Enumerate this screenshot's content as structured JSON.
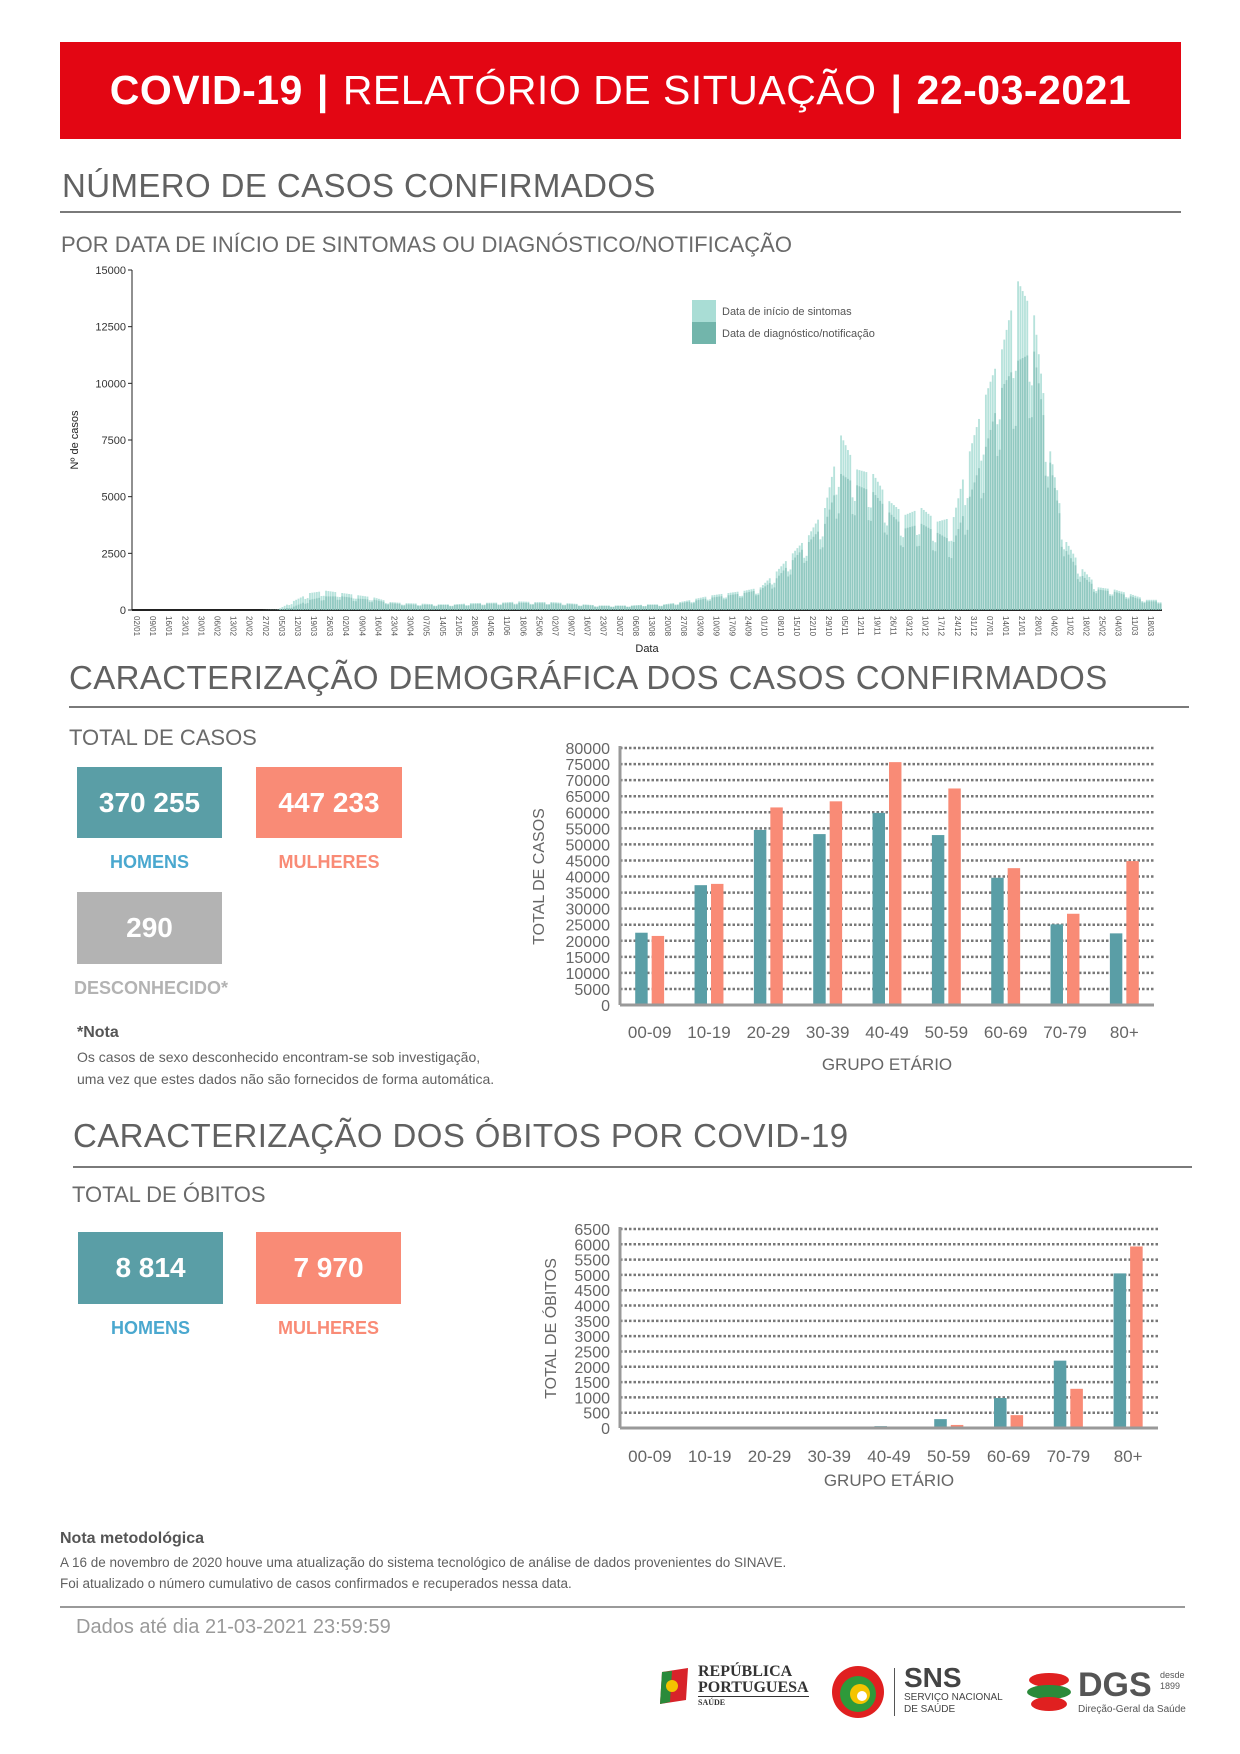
{
  "header": {
    "title_bold": "COVID-19",
    "separator": "|",
    "title": "RELATÓRIO DE SITUAÇÃO",
    "date": "22-03-2021"
  },
  "section_cases": {
    "title": "NÚMERO DE CASOS CONFIRMADOS",
    "subtitle": "POR DATA DE INÍCIO DE SINTOMAS OU DIAGNÓSTICO/NOTIFICAÇÃO"
  },
  "section_demo": {
    "title": "CARACTERIZAÇÃO DEMOGRÁFICA DOS CASOS CONFIRMADOS",
    "total_label": "TOTAL DE CASOS",
    "men_value": "370 255",
    "men_label": "HOMENS",
    "women_value": "447 233",
    "women_label": "MULHERES",
    "unknown_value": "290",
    "unknown_label": "DESCONHECIDO*",
    "note_title": "*Nota",
    "note_line1": "Os casos de sexo desconhecido encontram-se sob investigação,",
    "note_line2": "uma vez que estes dados não são fornecidos de forma automática."
  },
  "section_deaths": {
    "title": "CARACTERIZAÇÃO DOS ÓBITOS POR COVID-19",
    "total_label": "TOTAL DE ÓBITOS",
    "men_value": "8 814",
    "men_label": "HOMENS",
    "women_value": "7 970",
    "women_label": "MULHERES"
  },
  "colors": {
    "header": "#e30613",
    "men": "#5a9ea6",
    "women": "#f98b76",
    "unknown": "#b3b3b3",
    "men_label": "#4aa8cf",
    "symptoms": "#a9ddd5",
    "notification": "#72b5ab"
  },
  "chart_data": [
    {
      "type": "bar",
      "xlabel": "Data",
      "ylabel": "Nº de casos",
      "ylim": [
        0,
        15000
      ],
      "yticks": [
        0,
        2500,
        5000,
        7500,
        10000,
        12500,
        15000
      ],
      "legend_position": "top-right",
      "grid": false,
      "categories": [
        "02/01",
        "09/01",
        "16/01",
        "23/01",
        "30/01",
        "06/02",
        "13/02",
        "20/02",
        "27/02",
        "05/03",
        "12/03",
        "19/03",
        "26/03",
        "02/04",
        "09/04",
        "16/04",
        "23/04",
        "30/04",
        "07/05",
        "14/05",
        "21/05",
        "28/05",
        "04/06",
        "11/06",
        "18/06",
        "25/06",
        "02/07",
        "09/07",
        "16/07",
        "23/07",
        "30/07",
        "06/08",
        "13/08",
        "20/08",
        "27/08",
        "03/09",
        "10/09",
        "17/09",
        "24/09",
        "01/10",
        "08/10",
        "15/10",
        "22/10",
        "29/10",
        "05/11",
        "12/11",
        "19/11",
        "26/11",
        "03/12",
        "10/12",
        "17/12",
        "24/12",
        "31/12",
        "07/01",
        "14/01",
        "21/01",
        "28/01",
        "04/02",
        "11/02",
        "18/02",
        "25/02",
        "04/03",
        "11/03",
        "18/03"
      ],
      "series": [
        {
          "name": "Data de início de sintomas",
          "values": [
            0,
            0,
            0,
            0,
            0,
            0,
            0,
            0,
            0,
            20,
            400,
            750,
            850,
            750,
            650,
            550,
            350,
            300,
            280,
            250,
            250,
            300,
            320,
            330,
            380,
            350,
            350,
            300,
            250,
            200,
            200,
            200,
            250,
            250,
            350,
            500,
            650,
            750,
            850,
            1000,
            1700,
            2500,
            3300,
            4500,
            7700,
            6200,
            6000,
            4800,
            4200,
            4500,
            3900,
            4100,
            7000,
            9500,
            11500,
            14500,
            13000,
            7000,
            3000,
            1800,
            1000,
            900,
            700,
            450
          ]
        },
        {
          "name": "Data de diagnóstico/notificação",
          "values": [
            0,
            0,
            0,
            0,
            0,
            0,
            0,
            0,
            0,
            0,
            150,
            450,
            600,
            600,
            500,
            450,
            300,
            250,
            230,
            220,
            220,
            250,
            280,
            290,
            320,
            300,
            300,
            260,
            220,
            180,
            180,
            180,
            220,
            220,
            300,
            420,
            550,
            650,
            750,
            900,
            1400,
            2200,
            3000,
            3800,
            6000,
            5500,
            5200,
            4300,
            3600,
            3800,
            3400,
            3000,
            5000,
            7200,
            9800,
            11000,
            11400,
            6500,
            2600,
            1500,
            900,
            800,
            600,
            380
          ]
        }
      ]
    },
    {
      "type": "bar",
      "xlabel": "GRUPO ETÁRIO",
      "ylabel": "TOTAL DE CASOS",
      "ylim": [
        0,
        80000
      ],
      "yticks": [
        0,
        5000,
        10000,
        15000,
        20000,
        25000,
        30000,
        35000,
        40000,
        45000,
        50000,
        55000,
        60000,
        65000,
        70000,
        75000,
        80000
      ],
      "grid": true,
      "categories": [
        "00-09",
        "10-19",
        "20-29",
        "30-39",
        "40-49",
        "50-59",
        "60-69",
        "70-79",
        "80+"
      ],
      "series": [
        {
          "values": [
            22500,
            37300,
            54500,
            53200,
            59800,
            52900,
            39600,
            25100,
            22300
          ]
        },
        {
          "values": [
            21500,
            37700,
            61500,
            63400,
            75600,
            67400,
            42600,
            28400,
            44800
          ]
        }
      ]
    },
    {
      "type": "bar",
      "xlabel": "GRUPO ETÁRIO",
      "ylabel": "TOTAL DE ÓBITOS",
      "ylim": [
        0,
        6500
      ],
      "yticks": [
        0,
        500,
        1000,
        1500,
        2000,
        2500,
        3000,
        3500,
        4000,
        4500,
        5000,
        5500,
        6000,
        6500
      ],
      "grid": true,
      "categories": [
        "00-09",
        "10-19",
        "20-29",
        "30-39",
        "40-49",
        "50-59",
        "60-69",
        "70-79",
        "80+"
      ],
      "series": [
        {
          "values": [
            1,
            0,
            2,
            6,
            60,
            290,
            980,
            2200,
            5050
          ]
        },
        {
          "values": [
            0,
            1,
            1,
            4,
            20,
            100,
            420,
            1280,
            5930
          ]
        }
      ]
    }
  ],
  "methodology": {
    "title": "Nota metodológica",
    "line1": "A 16 de novembro de 2020 houve uma atualização do sistema tecnológico de análise de dados provenientes do SINAVE.",
    "line2": "Foi atualizado o número cumulativo de casos confirmados e recuperados nessa data."
  },
  "footer": {
    "data_until": "Dados até dia 21-03-2021 23:59:59",
    "logo_rp": {
      "line1": "REPÚBLICA",
      "line2": "PORTUGUESA",
      "line3": "SAÚDE"
    },
    "logo_sns": {
      "title": "SNS",
      "line1": "SERVIÇO NACIONAL",
      "line2": "DE SAÚDE"
    },
    "logo_dgs": {
      "title": "DGS",
      "since": "desde",
      "year": "1899",
      "subtitle": "Direção-Geral da Saúde"
    }
  }
}
